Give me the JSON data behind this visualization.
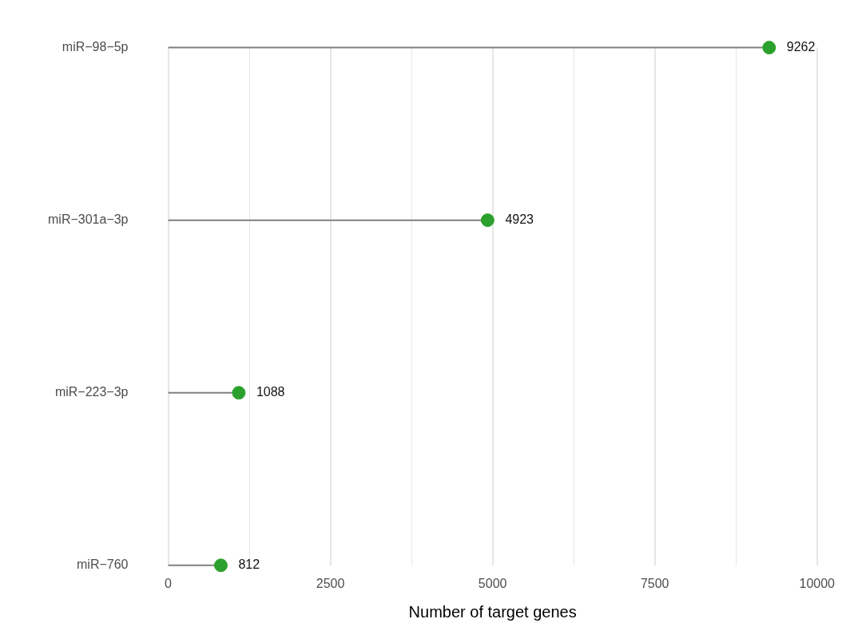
{
  "chart_data": {
    "type": "lollipop",
    "orientation": "horizontal",
    "xlabel": "Number of target genes",
    "categories": [
      "miR−98−5p",
      "miR−301a−3p",
      "miR−223−3p",
      "miR−760"
    ],
    "values": [
      9262,
      4923,
      1088,
      812
    ],
    "color": "#2ca02c",
    "data_labels": true,
    "xlim": [
      0,
      10000
    ],
    "xticks": [
      0,
      {
        "value": 1250,
        "label": null
      },
      2500,
      {
        "value": 3750,
        "label": null
      },
      5000,
      {
        "value": 6250,
        "label": null
      },
      7500,
      {
        "value": 8750,
        "label": null
      },
      10000
    ],
    "grid": "x",
    "legend": false,
    "marker": "circle"
  }
}
